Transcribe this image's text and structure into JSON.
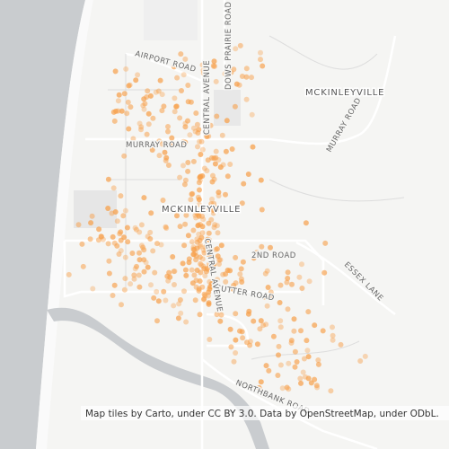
{
  "labels": {
    "airport_road": "AIRPORT ROAD",
    "central_avenue_north": "CENTRAL AVENUE",
    "dows_prairie_road": "DOWS PRAIRIE ROAD",
    "mckinleyville_east": "MCKINLEYVILLE",
    "murray_road_west": "MURRAY ROAD",
    "murray_road_east": "MURRAY ROAD",
    "mckinleyville_center": "MCKINLEYVILLE",
    "second_road": "2ND ROAD",
    "sutter_road": "SUTTER ROAD",
    "central_avenue_south": "CENTRAL AVENUE",
    "essex_lane": "ESSEX LANE",
    "northbank_road": "NORTHBANK ROAD"
  },
  "attribution": "Map tiles by Carto, under CC BY 3.0. Data by OpenStreetMap, under ODbL."
}
